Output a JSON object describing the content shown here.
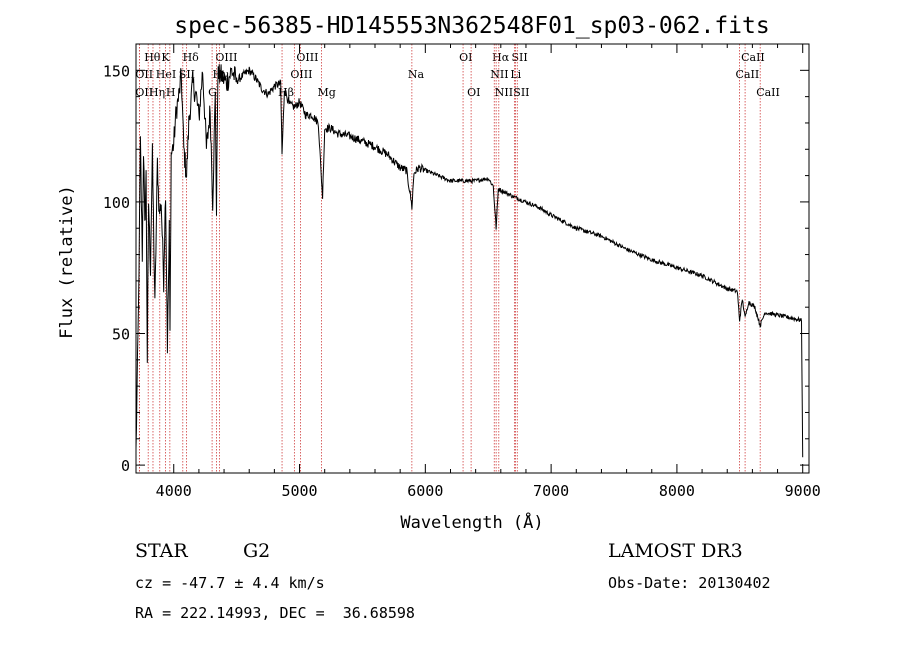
{
  "chart_data": {
    "type": "line",
    "title": "spec-56385-HD145553N362548F01_sp03-062.fits",
    "xlabel": "Wavelength (Å)",
    "ylabel": "Flux (relative)",
    "xlim": [
      3700,
      9050
    ],
    "ylim": [
      -3,
      160
    ],
    "xticks": [
      4000,
      5000,
      6000,
      7000,
      8000,
      9000
    ],
    "xtick_labels": [
      "4000",
      "5000",
      "6000",
      "7000",
      "8000",
      "9000"
    ],
    "yticks": [
      0,
      50,
      100,
      150
    ],
    "ytick_labels": [
      "0",
      "50",
      "100",
      "150"
    ],
    "grid": false,
    "series": [
      {
        "name": "spectrum",
        "x": [
          3700,
          3720,
          3735,
          3750,
          3760,
          3770,
          3780,
          3790,
          3800,
          3815,
          3830,
          3850,
          3870,
          3885,
          3900,
          3920,
          3935,
          3950,
          3965,
          3970,
          3980,
          4000,
          4020,
          4040,
          4060,
          4080,
          4102,
          4120,
          4150,
          4180,
          4200,
          4230,
          4260,
          4290,
          4310,
          4330,
          4340,
          4350,
          4380,
          4420,
          4460,
          4500,
          4550,
          4600,
          4650,
          4700,
          4750,
          4800,
          4850,
          4861,
          4880,
          4920,
          4960,
          5000,
          5050,
          5100,
          5150,
          5170,
          5183,
          5200,
          5250,
          5300,
          5400,
          5500,
          5600,
          5700,
          5800,
          5850,
          5880,
          5893,
          5910,
          5950,
          6000,
          6100,
          6200,
          6300,
          6400,
          6500,
          6540,
          6563,
          6580,
          6620,
          6700,
          6800,
          6900,
          7000,
          7200,
          7400,
          7600,
          7800,
          8000,
          8200,
          8400,
          8480,
          8498,
          8520,
          8542,
          8570,
          8620,
          8662,
          8700,
          8800,
          8900,
          8990,
          9000
        ],
        "y": [
          5,
          60,
          122,
          80,
          120,
          90,
          110,
          40,
          100,
          75,
          118,
          60,
          115,
          95,
          100,
          70,
          105,
          45,
          90,
          50,
          118,
          122,
          135,
          140,
          148,
          120,
          110,
          130,
          145,
          140,
          132,
          150,
          120,
          135,
          100,
          140,
          95,
          148,
          148,
          145,
          150,
          146,
          148,
          150,
          147,
          143,
          141,
          144,
          145,
          118,
          143,
          137,
          136,
          138,
          133,
          133,
          130,
          112,
          102,
          128,
          128,
          126,
          125,
          123,
          121,
          118,
          113,
          112,
          103,
          98,
          111,
          113,
          112,
          110,
          108,
          108,
          108,
          109,
          106,
          90,
          105,
          104,
          102,
          100,
          98,
          95,
          90,
          87,
          82,
          78,
          75,
          72,
          67,
          66,
          55,
          63,
          56,
          62,
          60,
          53,
          58,
          57,
          56,
          55,
          3
        ]
      }
    ],
    "line_markers": [
      {
        "label": "Hθ",
        "wavelength": 3797,
        "row": 1
      },
      {
        "label": "OII",
        "wavelength": 3727,
        "row": 2
      },
      {
        "label": "OII",
        "wavelength": 3727,
        "row": 3
      },
      {
        "label": "Hη",
        "wavelength": 3835,
        "row": 3
      },
      {
        "label": "K",
        "wavelength": 3934,
        "row": 1
      },
      {
        "label": "HeI",
        "wavelength": 3889,
        "row": 2
      },
      {
        "label": "H",
        "wavelength": 3969,
        "row": 3
      },
      {
        "label": "Hδ",
        "wavelength": 4102,
        "row": 1
      },
      {
        "label": "SII",
        "wavelength": 4072,
        "row": 2
      },
      {
        "label": "OIII",
        "wavelength": 4363,
        "row": 1
      },
      {
        "label": "Hγ",
        "wavelength": 4340,
        "row": 2
      },
      {
        "label": "G",
        "wavelength": 4305,
        "row": 3
      },
      {
        "label": "OIII",
        "wavelength": 5007,
        "row": 1
      },
      {
        "label": "OIII",
        "wavelength": 4959,
        "row": 2
      },
      {
        "label": "Hβ",
        "wavelength": 4861,
        "row": 3
      },
      {
        "label": "Mg",
        "wavelength": 5175,
        "row": 3
      },
      {
        "label": "Na",
        "wavelength": 5893,
        "row": 2
      },
      {
        "label": "OI",
        "wavelength": 6300,
        "row": 1
      },
      {
        "label": "OI",
        "wavelength": 6364,
        "row": 3
      },
      {
        "label": "Hα",
        "wavelength": 6563,
        "row": 1
      },
      {
        "label": "SII",
        "wavelength": 6717,
        "row": 1
      },
      {
        "label": "NII",
        "wavelength": 6548,
        "row": 2
      },
      {
        "label": "Li",
        "wavelength": 6708,
        "row": 2
      },
      {
        "label": "NII",
        "wavelength": 6584,
        "row": 3
      },
      {
        "label": "SII",
        "wavelength": 6731,
        "row": 3
      },
      {
        "label": "CaII",
        "wavelength": 8542,
        "row": 1
      },
      {
        "label": "CaII",
        "wavelength": 8498,
        "row": 2
      },
      {
        "label": "CaII",
        "wavelength": 8662,
        "row": 3
      }
    ]
  },
  "footer": {
    "object_class": "STAR",
    "subclass": "G2",
    "survey": "LAMOST DR3",
    "redshift": "cz = -47.7 ± 4.4 km/s",
    "obs_date": "Obs-Date: 20130402",
    "coordinates": "RA = 222.14993, DEC =  36.68598"
  }
}
